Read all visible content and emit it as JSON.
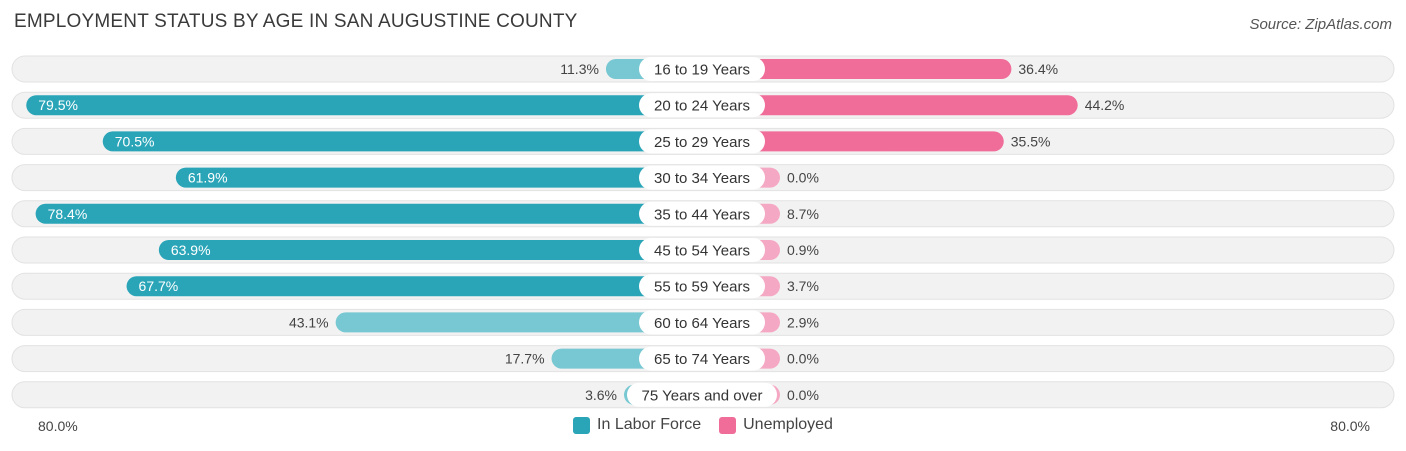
{
  "title": "EMPLOYMENT STATUS BY AGE IN SAN AUGUSTINE COUNTY",
  "source": "Source: ZipAtlas.com",
  "colors": {
    "labor_strong": "#2aa5b8",
    "labor_light": "#77c8d2",
    "unemp_strong": "#f06c99",
    "unemp_light": "#f5a8c3",
    "row_bg": "#f2f2f2"
  },
  "chart_data": {
    "type": "bar",
    "orientation": "horizontal-diverging",
    "categories": [
      "16 to 19 Years",
      "20 to 24 Years",
      "25 to 29 Years",
      "30 to 34 Years",
      "35 to 44 Years",
      "45 to 54 Years",
      "55 to 59 Years",
      "60 to 64 Years",
      "65 to 74 Years",
      "75 Years and over"
    ],
    "series": [
      {
        "name": "In Labor Force",
        "values": [
          11.3,
          79.5,
          70.5,
          61.9,
          78.4,
          63.9,
          67.7,
          43.1,
          17.7,
          3.6
        ],
        "labels": [
          "11.3%",
          "79.5%",
          "70.5%",
          "61.9%",
          "78.4%",
          "63.9%",
          "67.7%",
          "43.1%",
          "17.7%",
          "3.6%"
        ]
      },
      {
        "name": "Unemployed",
        "values": [
          36.4,
          44.2,
          35.5,
          0.0,
          8.7,
          0.9,
          3.7,
          2.9,
          0.0,
          0.0
        ],
        "labels": [
          "36.4%",
          "44.2%",
          "35.5%",
          "0.0%",
          "8.7%",
          "0.9%",
          "3.7%",
          "2.9%",
          "0.0%",
          "0.0%"
        ]
      }
    ],
    "xlim": [
      -80,
      80
    ],
    "axis_labels": {
      "left": "80.0%",
      "right": "80.0%"
    },
    "legend": [
      "In Labor Force",
      "Unemployed"
    ],
    "legend_position": "bottom-center"
  }
}
